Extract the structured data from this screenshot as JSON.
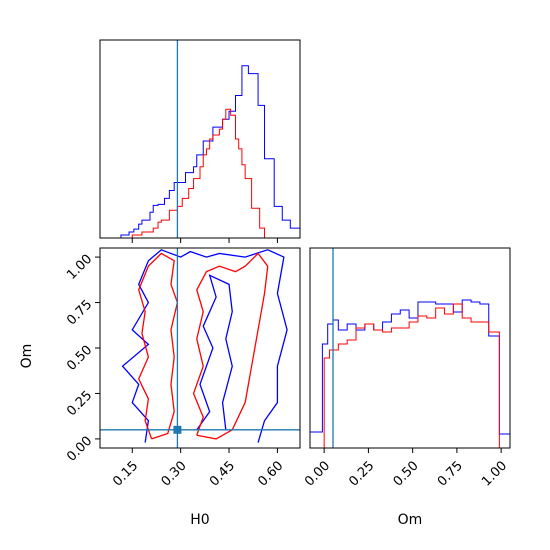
{
  "chart_data": [
    {
      "panel": "H0 marginal",
      "type": "histogram",
      "x_range": [
        0.05,
        0.67
      ],
      "y_range": [
        0,
        1
      ],
      "xlabel": "",
      "ylabel": "",
      "tick_labels_shown": false,
      "truth_line": {
        "axis": "x",
        "value": 0.29
      },
      "series": [
        {
          "color": "#0000ff",
          "bin_edges": [
            0.115,
            0.14,
            0.155,
            0.17,
            0.18,
            0.205,
            0.215,
            0.23,
            0.25,
            0.265,
            0.28,
            0.305,
            0.315,
            0.34,
            0.35,
            0.37,
            0.38,
            0.4,
            0.42,
            0.43,
            0.45,
            0.47,
            0.49,
            0.51,
            0.52,
            0.54,
            0.56,
            0.59,
            0.615,
            0.64,
            0.67
          ],
          "heights": [
            0.015,
            0.03,
            0.045,
            0.07,
            0.09,
            0.13,
            0.165,
            0.17,
            0.2,
            0.24,
            0.28,
            0.28,
            0.33,
            0.36,
            0.42,
            0.49,
            0.49,
            0.56,
            0.56,
            0.6,
            0.64,
            0.72,
            0.87,
            0.83,
            0.83,
            0.67,
            0.4,
            0.16,
            0.09,
            0.05
          ]
        },
        {
          "color": "#ff0000",
          "bin_edges": [
            0.15,
            0.18,
            0.215,
            0.23,
            0.24,
            0.265,
            0.29,
            0.305,
            0.325,
            0.34,
            0.36,
            0.37,
            0.38,
            0.39,
            0.4,
            0.42,
            0.43,
            0.44,
            0.455,
            0.47,
            0.48,
            0.49,
            0.5,
            0.52,
            0.545,
            0.56,
            0.57
          ],
          "heights": [
            0.015,
            0.03,
            0.05,
            0.08,
            0.09,
            0.14,
            0.16,
            0.2,
            0.25,
            0.3,
            0.36,
            0.42,
            0.45,
            0.5,
            0.52,
            0.55,
            0.6,
            0.65,
            0.62,
            0.5,
            0.45,
            0.37,
            0.3,
            0.15,
            0.05,
            0.0
          ]
        }
      ]
    },
    {
      "panel": "Om marginal",
      "type": "histogram",
      "x_range": [
        -0.08,
        1.05
      ],
      "y_range": [
        0,
        1
      ],
      "xlabel": "Om",
      "ylabel": "",
      "x_ticks": [
        0.0,
        0.25,
        0.5,
        0.75,
        1.0
      ],
      "x_tick_labels": [
        "0.00",
        "0.25",
        "0.50",
        "0.75",
        "1.00"
      ],
      "truth_line": {
        "axis": "x",
        "value": 0.05
      },
      "series": [
        {
          "color": "#0000ff",
          "bin_edges": [
            -0.08,
            -0.01,
            0.02,
            0.05,
            0.08,
            0.13,
            0.18,
            0.23,
            0.28,
            0.33,
            0.38,
            0.43,
            0.48,
            0.53,
            0.58,
            0.63,
            0.68,
            0.73,
            0.78,
            0.83,
            0.88,
            0.93,
            0.99,
            1.05
          ],
          "heights": [
            0.08,
            0.52,
            0.62,
            0.64,
            0.59,
            0.62,
            0.59,
            0.62,
            0.59,
            0.63,
            0.67,
            0.69,
            0.65,
            0.73,
            0.73,
            0.72,
            0.72,
            0.68,
            0.74,
            0.73,
            0.72,
            0.56,
            0.07
          ]
        },
        {
          "color": "#ff0000",
          "bin_edges": [
            0.0,
            0.03,
            0.08,
            0.13,
            0.18,
            0.23,
            0.28,
            0.33,
            0.38,
            0.43,
            0.48,
            0.53,
            0.58,
            0.63,
            0.68,
            0.73,
            0.78,
            0.83,
            0.88,
            0.93,
            0.99
          ],
          "heights": [
            0.45,
            0.49,
            0.52,
            0.54,
            0.6,
            0.62,
            0.59,
            0.58,
            0.6,
            0.6,
            0.63,
            0.66,
            0.65,
            0.7,
            0.67,
            0.72,
            0.65,
            0.63,
            0.63,
            0.58
          ]
        }
      ]
    },
    {
      "panel": "H0 vs Om",
      "type": "contour",
      "x_range": [
        0.05,
        0.67
      ],
      "y_range": [
        -0.05,
        1.05
      ],
      "xlabel": "H0",
      "ylabel": "Om",
      "x_ticks": [
        0.15,
        0.3,
        0.45,
        0.6
      ],
      "x_tick_labels": [
        "0.15",
        "0.30",
        "0.45",
        "0.60"
      ],
      "y_ticks": [
        0.0,
        0.25,
        0.5,
        0.75,
        1.0
      ],
      "y_tick_labels": [
        "0.00",
        "0.25",
        "0.50",
        "0.75",
        "1.00"
      ],
      "truth_point": {
        "x": 0.29,
        "y": 0.05
      },
      "contours": [
        {
          "color": "#0000ff",
          "points": [
            [
              0.19,
              -0.02
            ],
            [
              0.2,
              0.1
            ],
            [
              0.15,
              0.2
            ],
            [
              0.17,
              0.3
            ],
            [
              0.12,
              0.4
            ],
            [
              0.2,
              0.52
            ],
            [
              0.15,
              0.6
            ],
            [
              0.2,
              0.75
            ],
            [
              0.17,
              0.85
            ],
            [
              0.2,
              0.98
            ],
            [
              0.24,
              1.04
            ],
            [
              0.3,
              1.0
            ],
            [
              0.33,
              1.03
            ],
            [
              0.38,
              1.0
            ],
            [
              0.42,
              1.02
            ],
            [
              0.5,
              1.0
            ],
            [
              0.57,
              1.04
            ],
            [
              0.62,
              1.0
            ],
            [
              0.6,
              0.8
            ],
            [
              0.63,
              0.6
            ],
            [
              0.6,
              0.4
            ],
            [
              0.6,
              0.2
            ],
            [
              0.56,
              0.1
            ],
            [
              0.54,
              -0.02
            ]
          ]
        },
        {
          "color": "#0000ff",
          "points": [
            [
              0.35,
              0.05
            ],
            [
              0.39,
              0.15
            ],
            [
              0.36,
              0.3
            ],
            [
              0.4,
              0.5
            ],
            [
              0.37,
              0.62
            ],
            [
              0.41,
              0.78
            ],
            [
              0.39,
              0.9
            ],
            [
              0.45,
              0.85
            ],
            [
              0.46,
              0.7
            ],
            [
              0.44,
              0.55
            ],
            [
              0.46,
              0.4
            ],
            [
              0.43,
              0.2
            ],
            [
              0.44,
              0.05
            ]
          ]
        },
        {
          "color": "#ff0000",
          "points": [
            [
              0.21,
              0.0
            ],
            [
              0.19,
              0.1
            ],
            [
              0.2,
              0.22
            ],
            [
              0.17,
              0.33
            ],
            [
              0.2,
              0.45
            ],
            [
              0.18,
              0.58
            ],
            [
              0.19,
              0.7
            ],
            [
              0.17,
              0.82
            ],
            [
              0.2,
              0.95
            ],
            [
              0.24,
              1.02
            ],
            [
              0.28,
              0.98
            ],
            [
              0.27,
              0.85
            ],
            [
              0.29,
              0.75
            ],
            [
              0.27,
              0.6
            ],
            [
              0.28,
              0.45
            ],
            [
              0.27,
              0.3
            ],
            [
              0.28,
              0.15
            ],
            [
              0.26,
              0.03
            ],
            [
              0.21,
              0.0
            ]
          ]
        },
        {
          "color": "#ff0000",
          "points": [
            [
              0.35,
              0.02
            ],
            [
              0.37,
              0.12
            ],
            [
              0.34,
              0.25
            ],
            [
              0.37,
              0.4
            ],
            [
              0.35,
              0.55
            ],
            [
              0.37,
              0.7
            ],
            [
              0.35,
              0.82
            ],
            [
              0.38,
              0.92
            ],
            [
              0.42,
              0.95
            ],
            [
              0.47,
              0.92
            ],
            [
              0.5,
              0.95
            ],
            [
              0.54,
              1.02
            ],
            [
              0.57,
              0.95
            ],
            [
              0.56,
              0.8
            ],
            [
              0.54,
              0.6
            ],
            [
              0.52,
              0.4
            ],
            [
              0.5,
              0.2
            ],
            [
              0.46,
              0.05
            ],
            [
              0.41,
              0.0
            ],
            [
              0.35,
              0.02
            ]
          ]
        }
      ]
    }
  ]
}
